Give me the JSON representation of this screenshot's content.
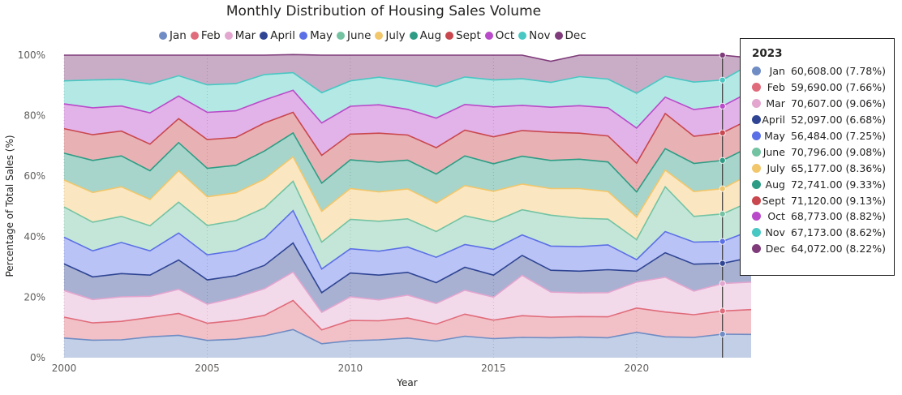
{
  "chart_data": {
    "type": "area",
    "stacked": "percent",
    "title": "Monthly Distribution of Housing Sales Volume",
    "xlabel": "Year",
    "ylabel": "Percentage of Total Sales (%)",
    "ylim": [
      0,
      100
    ],
    "yticks": [
      "0%",
      "20%",
      "40%",
      "60%",
      "80%",
      "100%"
    ],
    "xticks": [
      "2000",
      "2005",
      "2010",
      "2015",
      "2020"
    ],
    "legend_position": "top",
    "grid": "vertical dotted",
    "x": [
      2000,
      2001,
      2002,
      2003,
      2004,
      2005,
      2006,
      2007,
      2008,
      2009,
      2010,
      2011,
      2012,
      2013,
      2014,
      2015,
      2016,
      2017,
      2018,
      2019,
      2020,
      2021,
      2022,
      2023,
      2024
    ],
    "series": [
      {
        "name": "Jan",
        "color": "#6f8cc4",
        "values": [
          6.5,
          5.8,
          5.9,
          6.9,
          7.4,
          5.7,
          6.1,
          7.2,
          9.3,
          4.6,
          5.6,
          5.9,
          6.5,
          5.5,
          7.1,
          6.3,
          6.7,
          6.6,
          6.8,
          6.6,
          8.4,
          6.9,
          6.7,
          7.78,
          7.7
        ]
      },
      {
        "name": "Feb",
        "color": "#e06b7a",
        "values": [
          6.9,
          5.7,
          6.1,
          6.4,
          7.2,
          5.7,
          6.2,
          6.8,
          9.6,
          4.6,
          6.7,
          6.3,
          6.6,
          5.6,
          7.3,
          6.1,
          7.2,
          6.8,
          6.8,
          6.9,
          8.0,
          8.2,
          7.5,
          7.66,
          8.2
        ]
      },
      {
        "name": "Mar",
        "color": "#e3a6cf",
        "values": [
          8.8,
          7.7,
          8.1,
          7.0,
          8.0,
          6.3,
          7.5,
          8.8,
          9.4,
          5.8,
          7.8,
          6.9,
          7.6,
          6.8,
          7.9,
          7.6,
          13.3,
          8.3,
          7.8,
          8.0,
          8.6,
          11.5,
          7.8,
          9.06,
          9.1
        ]
      },
      {
        "name": "April",
        "color": "#2f4594",
        "values": [
          8.8,
          7.5,
          7.7,
          7.0,
          9.7,
          8.0,
          7.3,
          7.7,
          9.6,
          6.5,
          7.9,
          8.2,
          7.5,
          6.9,
          7.6,
          7.3,
          6.6,
          7.2,
          7.2,
          7.6,
          3.6,
          8.1,
          8.9,
          6.68,
          8.1
        ]
      },
      {
        "name": "May",
        "color": "#5b6fe6",
        "values": [
          8.8,
          8.6,
          10.3,
          8.0,
          8.9,
          8.3,
          8.3,
          8.9,
          10.7,
          7.8,
          8.0,
          7.9,
          8.4,
          8.4,
          7.5,
          8.5,
          6.8,
          8.0,
          8.1,
          8.2,
          3.8,
          7.0,
          7.3,
          7.25,
          8.9
        ]
      },
      {
        "name": "June",
        "color": "#73c3a3",
        "values": [
          10.0,
          9.5,
          8.6,
          8.3,
          10.2,
          9.7,
          9.9,
          10.1,
          9.7,
          8.9,
          9.7,
          9.9,
          9.3,
          8.5,
          9.5,
          9.1,
          8.3,
          10.2,
          9.4,
          8.5,
          6.6,
          14.8,
          8.5,
          9.08,
          9.7
        ]
      },
      {
        "name": "July",
        "color": "#f2c66b",
        "values": [
          8.9,
          9.8,
          9.8,
          8.7,
          10.4,
          9.5,
          9.2,
          9.5,
          8.1,
          10.2,
          10.2,
          9.7,
          9.9,
          9.4,
          10.0,
          10.1,
          8.5,
          8.8,
          9.8,
          9.1,
          7.5,
          5.5,
          8.2,
          8.36,
          9.1
        ]
      },
      {
        "name": "Aug",
        "color": "#2e9c84",
        "values": [
          8.9,
          10.6,
          10.2,
          9.5,
          9.3,
          9.4,
          9.1,
          9.3,
          7.9,
          9.3,
          9.5,
          9.8,
          9.5,
          9.6,
          9.8,
          9.1,
          9.2,
          9.3,
          9.7,
          9.8,
          8.3,
          7.1,
          9.3,
          9.33,
          9.1
        ]
      },
      {
        "name": "Sept",
        "color": "#c9474e",
        "values": [
          8.1,
          8.5,
          8.2,
          8.8,
          7.9,
          9.5,
          9.2,
          9.3,
          6.8,
          9.2,
          8.5,
          9.6,
          8.3,
          8.7,
          8.5,
          8.9,
          8.5,
          9.3,
          8.6,
          8.6,
          9.5,
          11.6,
          9.0,
          9.13,
          9.1
        ]
      },
      {
        "name": "Oct",
        "color": "#b94ac9",
        "values": [
          8.2,
          8.9,
          8.3,
          10.3,
          7.5,
          9.0,
          8.8,
          7.6,
          7.3,
          10.7,
          9.2,
          9.4,
          8.5,
          9.8,
          8.5,
          9.9,
          8.3,
          8.3,
          9.1,
          9.3,
          11.6,
          5.4,
          8.8,
          8.82,
          9.1
        ]
      },
      {
        "name": "Nov",
        "color": "#49c7c2",
        "values": [
          7.6,
          9.2,
          8.8,
          9.5,
          6.7,
          9.1,
          9.0,
          8.4,
          5.8,
          10.0,
          8.4,
          9.1,
          9.3,
          10.4,
          9.1,
          8.9,
          8.8,
          8.2,
          9.6,
          9.5,
          11.5,
          6.9,
          9.1,
          8.62,
          9.0
        ]
      },
      {
        "name": "Dec",
        "color": "#7f3b7a",
        "values": [
          8.5,
          8.2,
          8.0,
          9.6,
          6.8,
          9.8,
          9.4,
          6.4,
          6.0,
          12.4,
          8.5,
          7.3,
          8.6,
          10.4,
          7.2,
          8.2,
          7.8,
          7.0,
          7.1,
          7.9,
          12.6,
          7.0,
          8.9,
          8.22,
          2.0
        ]
      }
    ]
  },
  "tooltip": {
    "title": "2023",
    "rows": [
      {
        "label": "Jan",
        "value": "60,608.00 (7.78%)"
      },
      {
        "label": "Feb",
        "value": "59,690.00 (7.66%)"
      },
      {
        "label": "Mar",
        "value": "70,607.00 (9.06%)"
      },
      {
        "label": "April",
        "value": "52,097.00 (6.68%)"
      },
      {
        "label": "May",
        "value": "56,484.00 (7.25%)"
      },
      {
        "label": "June",
        "value": "70,796.00 (9.08%)"
      },
      {
        "label": "July",
        "value": "65,177.00 (8.36%)"
      },
      {
        "label": "Aug",
        "value": "72,741.00 (9.33%)"
      },
      {
        "label": "Sept",
        "value": "71,120.00 (9.13%)"
      },
      {
        "label": "Oct",
        "value": "68,773.00 (8.82%)"
      },
      {
        "label": "Nov",
        "value": "67,173.00 (8.62%)"
      },
      {
        "label": "Dec",
        "value": "64,072.00 (8.22%)"
      }
    ]
  }
}
